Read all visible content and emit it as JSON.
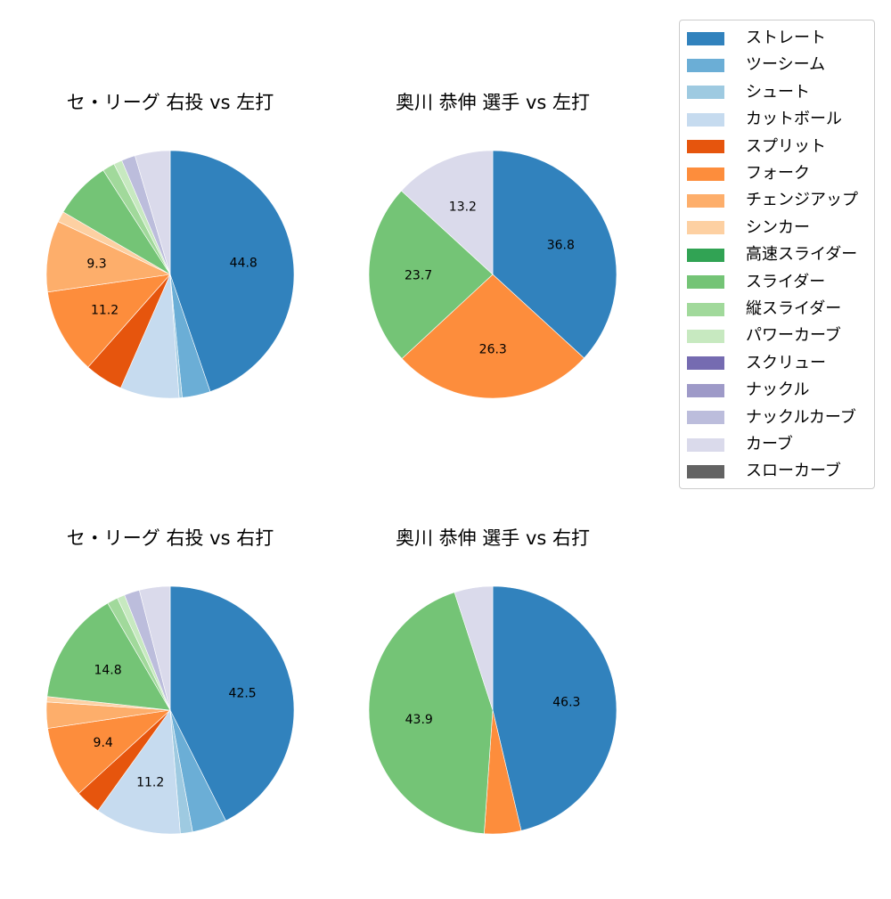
{
  "legend": {
    "items": [
      {
        "label": "ストレート",
        "color": "#3182bd"
      },
      {
        "label": "ツーシーム",
        "color": "#6baed6"
      },
      {
        "label": "シュート",
        "color": "#9ecae1"
      },
      {
        "label": "カットボール",
        "color": "#c6dbef"
      },
      {
        "label": "スプリット",
        "color": "#e6550d"
      },
      {
        "label": "フォーク",
        "color": "#fd8d3c"
      },
      {
        "label": "チェンジアップ",
        "color": "#fdae6b"
      },
      {
        "label": "シンカー",
        "color": "#fdd0a2"
      },
      {
        "label": "高速スライダー",
        "color": "#31a354"
      },
      {
        "label": "スライダー",
        "color": "#74c476"
      },
      {
        "label": "縦スライダー",
        "color": "#a1d99b"
      },
      {
        "label": "パワーカーブ",
        "color": "#c7e9c0"
      },
      {
        "label": "スクリュー",
        "color": "#756bb1"
      },
      {
        "label": "ナックル",
        "color": "#9e9ac8"
      },
      {
        "label": "ナックルカーブ",
        "color": "#bcbddc"
      },
      {
        "label": "カーブ",
        "color": "#dadaeb"
      },
      {
        "label": "スローカーブ",
        "color": "#636363"
      }
    ]
  },
  "chart_data": [
    {
      "type": "pie",
      "title": "セ・リーグ 右投 vs 左打",
      "categories": [
        "ストレート",
        "ツーシーム",
        "シュート",
        "カットボール",
        "スプリット",
        "フォーク",
        "チェンジアップ",
        "シンカー",
        "スライダー",
        "縦スライダー",
        "パワーカーブ",
        "ナックルカーブ",
        "カーブ"
      ],
      "values": [
        44.8,
        3.7,
        0.4,
        7.7,
        5.0,
        11.2,
        9.3,
        1.4,
        7.5,
        1.6,
        1.1,
        1.8,
        4.6
      ],
      "labels_shown": [
        "44.8",
        "",
        "",
        "",
        "",
        "11.2",
        "9.3",
        "",
        "",
        "",
        "",
        "",
        ""
      ],
      "startangle": 90,
      "direction": "clockwise"
    },
    {
      "type": "pie",
      "title": "奥川 恭伸 選手 vs 左打",
      "categories": [
        "ストレート",
        "フォーク",
        "スライダー",
        "カーブ"
      ],
      "values": [
        36.8,
        26.3,
        23.7,
        13.2
      ],
      "labels_shown": [
        "36.8",
        "26.3",
        "23.7",
        "13.2"
      ],
      "startangle": 90,
      "direction": "clockwise"
    },
    {
      "type": "pie",
      "title": "セ・リーグ 右投 vs 右打",
      "categories": [
        "ストレート",
        "ツーシーム",
        "シュート",
        "カットボール",
        "スプリット",
        "フォーク",
        "チェンジアップ",
        "シンカー",
        "スライダー",
        "縦スライダー",
        "パワーカーブ",
        "ナックルカーブ",
        "カーブ"
      ],
      "values": [
        42.5,
        4.5,
        1.6,
        11.2,
        3.3,
        9.4,
        3.4,
        0.7,
        14.8,
        1.4,
        1.0,
        2.0,
        4.0
      ],
      "labels_shown": [
        "42.5",
        "",
        "",
        "11.2",
        "",
        "9.4",
        "",
        "",
        "14.8",
        "",
        "",
        "",
        ""
      ],
      "startangle": 90,
      "direction": "clockwise"
    },
    {
      "type": "pie",
      "title": "奥川 恭伸 選手 vs 右打",
      "categories": [
        "ストレート",
        "フォーク",
        "スライダー",
        "カーブ"
      ],
      "values": [
        46.3,
        4.8,
        43.9,
        5.0
      ],
      "labels_shown": [
        "46.3",
        "",
        "43.9",
        ""
      ],
      "startangle": 90,
      "direction": "clockwise"
    }
  ]
}
